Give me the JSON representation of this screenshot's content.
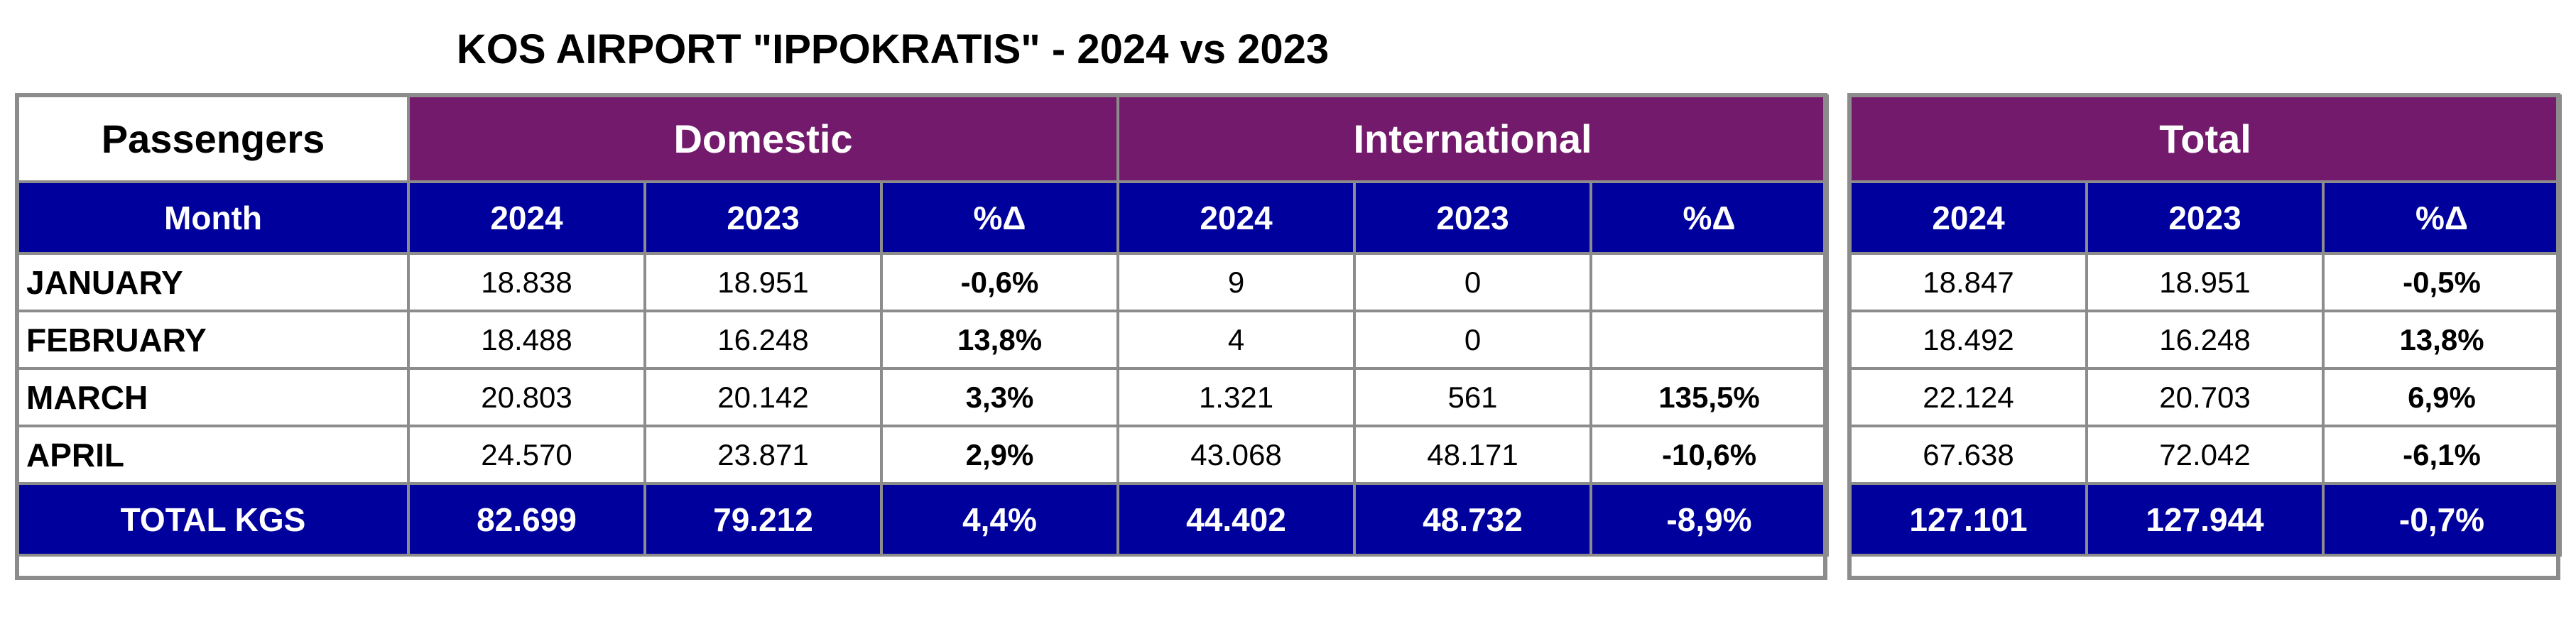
{
  "title": "KOS AIRPORT \"IPPOKRATIS\" - 2024 vs 2023",
  "colors": {
    "group_header": "#741a6c",
    "column_header": "#00009c",
    "border": "#8c8c8c"
  },
  "main_table": {
    "passengers_label": "Passengers",
    "domestic_label": "Domestic",
    "international_label": "International",
    "headers": {
      "month": "Month",
      "dom_2024": "2024",
      "dom_2023": "2023",
      "dom_pct": "%Δ",
      "int_2024": "2024",
      "int_2023": "2023",
      "int_pct": "%Δ"
    },
    "rows": [
      {
        "month": "JANUARY",
        "dom_2024": "18.838",
        "dom_2023": "18.951",
        "dom_pct": "-0,6%",
        "int_2024": "9",
        "int_2023": "0",
        "int_pct": ""
      },
      {
        "month": "FEBRUARY",
        "dom_2024": "18.488",
        "dom_2023": "16.248",
        "dom_pct": "13,8%",
        "int_2024": "4",
        "int_2023": "0",
        "int_pct": ""
      },
      {
        "month": "MARCH",
        "dom_2024": "20.803",
        "dom_2023": "20.142",
        "dom_pct": "3,3%",
        "int_2024": "1.321",
        "int_2023": "561",
        "int_pct": "135,5%"
      },
      {
        "month": "APRIL",
        "dom_2024": "24.570",
        "dom_2023": "23.871",
        "dom_pct": "2,9%",
        "int_2024": "43.068",
        "int_2023": "48.171",
        "int_pct": "-10,6%"
      }
    ],
    "total": {
      "month": "TOTAL KGS",
      "dom_2024": "82.699",
      "dom_2023": "79.212",
      "dom_pct": "4,4%",
      "int_2024": "44.402",
      "int_2023": "48.732",
      "int_pct": "-8,9%"
    }
  },
  "total_table": {
    "total_label": "Total",
    "headers": {
      "y2024": "2024",
      "y2023": "2023",
      "pct": "%Δ"
    },
    "rows": [
      {
        "y2024": "18.847",
        "y2023": "18.951",
        "pct": "-0,5%"
      },
      {
        "y2024": "18.492",
        "y2023": "16.248",
        "pct": "13,8%"
      },
      {
        "y2024": "22.124",
        "y2023": "20.703",
        "pct": "6,9%"
      },
      {
        "y2024": "67.638",
        "y2023": "72.042",
        "pct": "-6,1%"
      }
    ],
    "total": {
      "y2024": "127.101",
      "y2023": "127.944",
      "pct": "-0,7%"
    }
  }
}
